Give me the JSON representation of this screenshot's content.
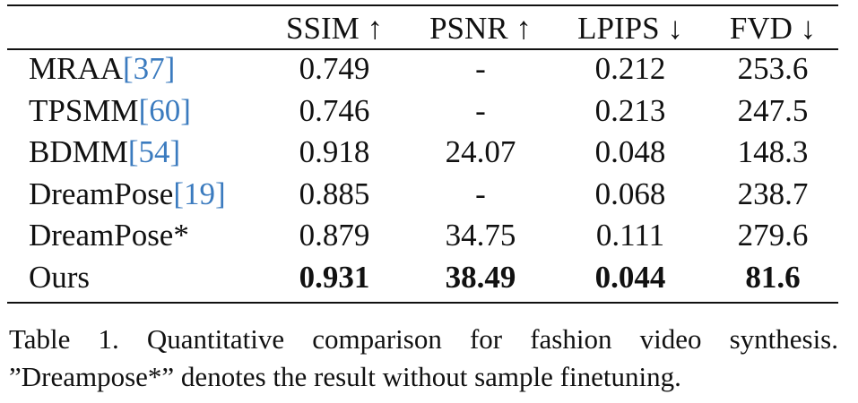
{
  "table": {
    "headers": [
      "",
      "SSIM ↑",
      "PSNR ↑",
      "LPIPS ↓",
      "FVD ↓"
    ],
    "rows": [
      {
        "method": "MRAA",
        "cite": "[37]",
        "ssim": "0.749",
        "psnr": "-",
        "lpips": "0.212",
        "fvd": "253.6"
      },
      {
        "method": "TPSMM",
        "cite": "[60]",
        "ssim": "0.746",
        "psnr": "-",
        "lpips": "0.213",
        "fvd": "247.5"
      },
      {
        "method": "BDMM",
        "cite": "[54]",
        "ssim": "0.918",
        "psnr": "24.07",
        "lpips": "0.048",
        "fvd": "148.3"
      },
      {
        "method": "DreamPose",
        "cite": "[19]",
        "ssim": "0.885",
        "psnr": "-",
        "lpips": "0.068",
        "fvd": "238.7"
      },
      {
        "method": "DreamPose*",
        "cite": "",
        "ssim": "0.879",
        "psnr": "34.75",
        "lpips": "0.111",
        "fvd": "279.6"
      },
      {
        "method": "Ours",
        "cite": "",
        "ssim": "0.931",
        "psnr": "38.49",
        "lpips": "0.044",
        "fvd": "81.6"
      }
    ]
  },
  "caption": {
    "line1": "Table 1.  Quantitative comparison for fashion video synthesis.",
    "line2": "”Dreampose*” denotes the result without sample finetuning."
  },
  "colors": {
    "citation": "#3b7bbf"
  }
}
